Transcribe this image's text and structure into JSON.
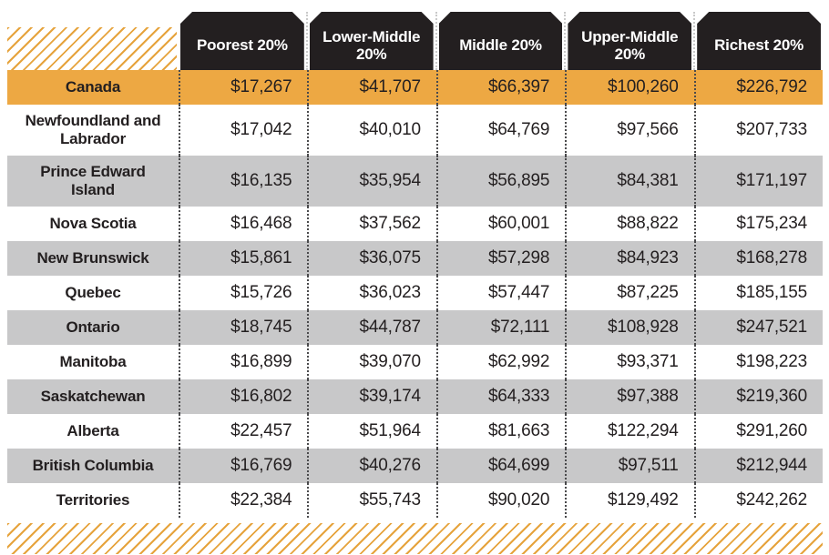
{
  "chart_data": {
    "type": "table",
    "columns": [
      "Poorest 20%",
      "Lower-Middle 20%",
      "Middle 20%",
      "Upper-Middle 20%",
      "Richest 20%"
    ],
    "rows": [
      {
        "label": "Canada",
        "highlight": true,
        "values": [
          "$17,267",
          "$41,707",
          "$66,397",
          "$100,260",
          "$226,792"
        ]
      },
      {
        "label": "Newfoundland and\nLabrador",
        "values": [
          "$17,042",
          "$40,010",
          "$64,769",
          "$97,566",
          "$207,733"
        ]
      },
      {
        "label": "Prince Edward\nIsland",
        "values": [
          "$16,135",
          "$35,954",
          "$56,895",
          "$84,381",
          "$171,197"
        ]
      },
      {
        "label": "Nova Scotia",
        "values": [
          "$16,468",
          "$37,562",
          "$60,001",
          "$88,822",
          "$175,234"
        ]
      },
      {
        "label": "New Brunswick",
        "values": [
          "$15,861",
          "$36,075",
          "$57,298",
          "$84,923",
          "$168,278"
        ]
      },
      {
        "label": "Quebec",
        "values": [
          "$15,726",
          "$36,023",
          "$57,447",
          "$87,225",
          "$185,155"
        ]
      },
      {
        "label": "Ontario",
        "values": [
          "$18,745",
          "$44,787",
          "$72,111",
          "$108,928",
          "$247,521"
        ]
      },
      {
        "label": "Manitoba",
        "values": [
          "$16,899",
          "$39,070",
          "$62,992",
          "$93,371",
          "$198,223"
        ]
      },
      {
        "label": "Saskatchewan",
        "values": [
          "$16,802",
          "$39,174",
          "$64,333",
          "$97,388",
          "$219,360"
        ]
      },
      {
        "label": "Alberta",
        "values": [
          "$22,457",
          "$51,964",
          "$81,663",
          "$122,294",
          "$291,260"
        ]
      },
      {
        "label": "British Columbia",
        "values": [
          "$16,769",
          "$40,276",
          "$64,699",
          "$97,511",
          "$212,944"
        ]
      },
      {
        "label": "Territories",
        "values": [
          "$22,384",
          "$55,743",
          "$90,020",
          "$129,492",
          "$242,262"
        ]
      }
    ]
  },
  "colors": {
    "header_bg": "#231F20",
    "header_text": "#FFFFFF",
    "highlight_row_bg": "#EDA843",
    "alt_row_bg": "#C8C8C9",
    "hatch_line": "#E6A33C",
    "text": "#231F20"
  }
}
